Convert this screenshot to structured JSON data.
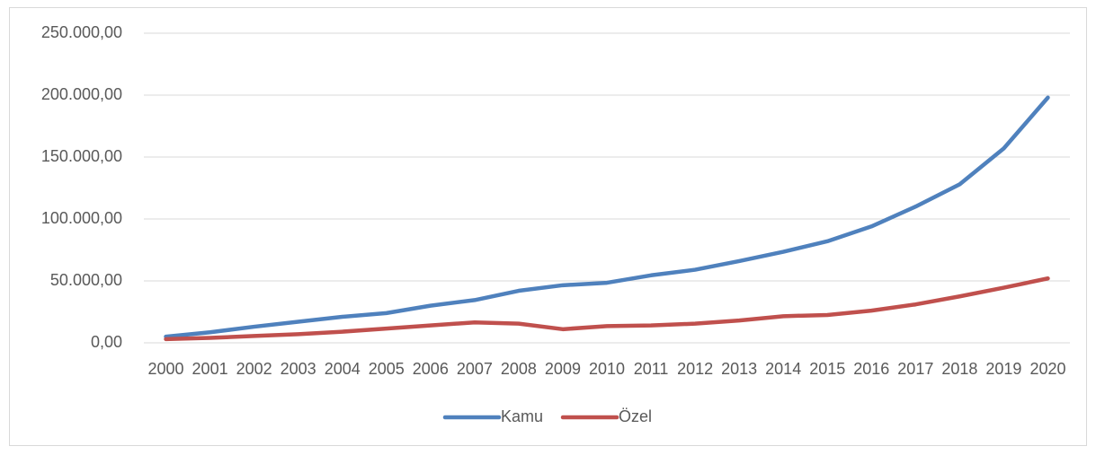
{
  "chart_data": {
    "type": "line",
    "categories": [
      "2000",
      "2001",
      "2002",
      "2003",
      "2004",
      "2005",
      "2006",
      "2007",
      "2008",
      "2009",
      "2010",
      "2011",
      "2012",
      "2013",
      "2014",
      "2015",
      "2016",
      "2017",
      "2018",
      "2019",
      "2020"
    ],
    "series": [
      {
        "name": "Kamu",
        "color": "#4f81bd",
        "values": [
          5000,
          8500,
          13000,
          17000,
          21000,
          24000,
          30000,
          34500,
          42000,
          46500,
          48500,
          54500,
          59000,
          66000,
          73500,
          82000,
          94000,
          110000,
          128000,
          157000,
          198000
        ]
      },
      {
        "name": "Özel",
        "color": "#c0504d",
        "values": [
          3000,
          4000,
          5500,
          7000,
          9000,
          11500,
          14000,
          16500,
          15500,
          11000,
          13500,
          14000,
          15500,
          18000,
          21500,
          22500,
          26000,
          31000,
          37500,
          44500,
          52000
        ]
      }
    ],
    "ylim": [
      0,
      250000
    ],
    "yticks": [
      {
        "value": 0,
        "label": "0,00"
      },
      {
        "value": 50000,
        "label": "50.000,00"
      },
      {
        "value": 100000,
        "label": "100.000,00"
      },
      {
        "value": 150000,
        "label": "150.000,00"
      },
      {
        "value": 200000,
        "label": "200.000,00"
      },
      {
        "value": 250000,
        "label": "250.000,00"
      }
    ],
    "grid": true,
    "legend": "bottom"
  }
}
